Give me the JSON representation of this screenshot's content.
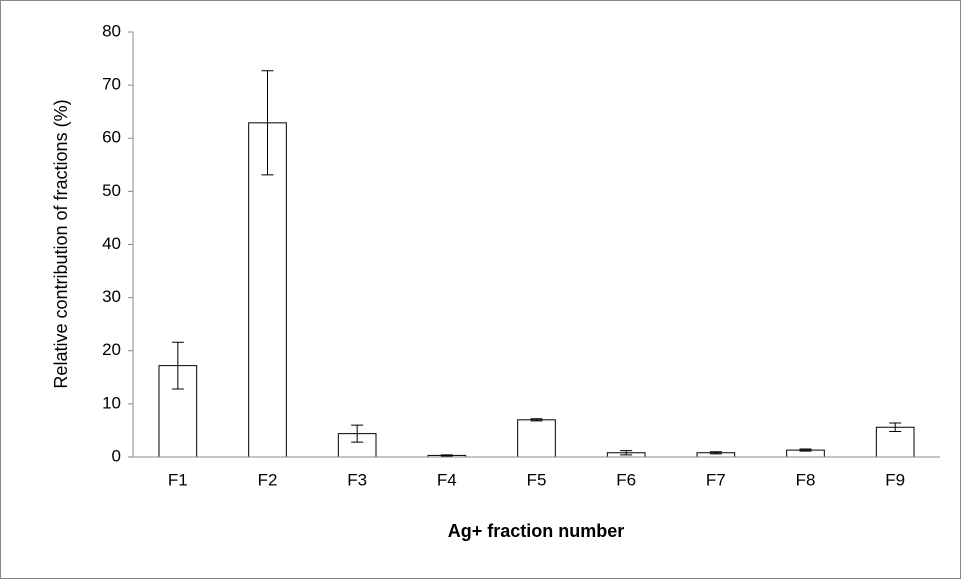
{
  "chart_data": {
    "type": "bar",
    "x_label": "Ag+ fraction number",
    "y_label": "Relative contribution of fractions (%)",
    "categories": [
      "F1",
      "F2",
      "F3",
      "F4",
      "F5",
      "F6",
      "F7",
      "F8",
      "F9"
    ],
    "values": [
      17.2,
      62.9,
      4.4,
      0.3,
      7.0,
      0.8,
      0.8,
      1.3,
      5.6
    ],
    "errors": [
      4.4,
      9.8,
      1.6,
      0.1,
      0.2,
      0.4,
      0.2,
      0.2,
      0.8
    ],
    "color": "#ffffff",
    "ylim": [
      0,
      80
    ],
    "yticks": [
      0,
      10,
      20,
      30,
      40,
      50,
      60,
      70,
      80
    ],
    "grid": false
  }
}
